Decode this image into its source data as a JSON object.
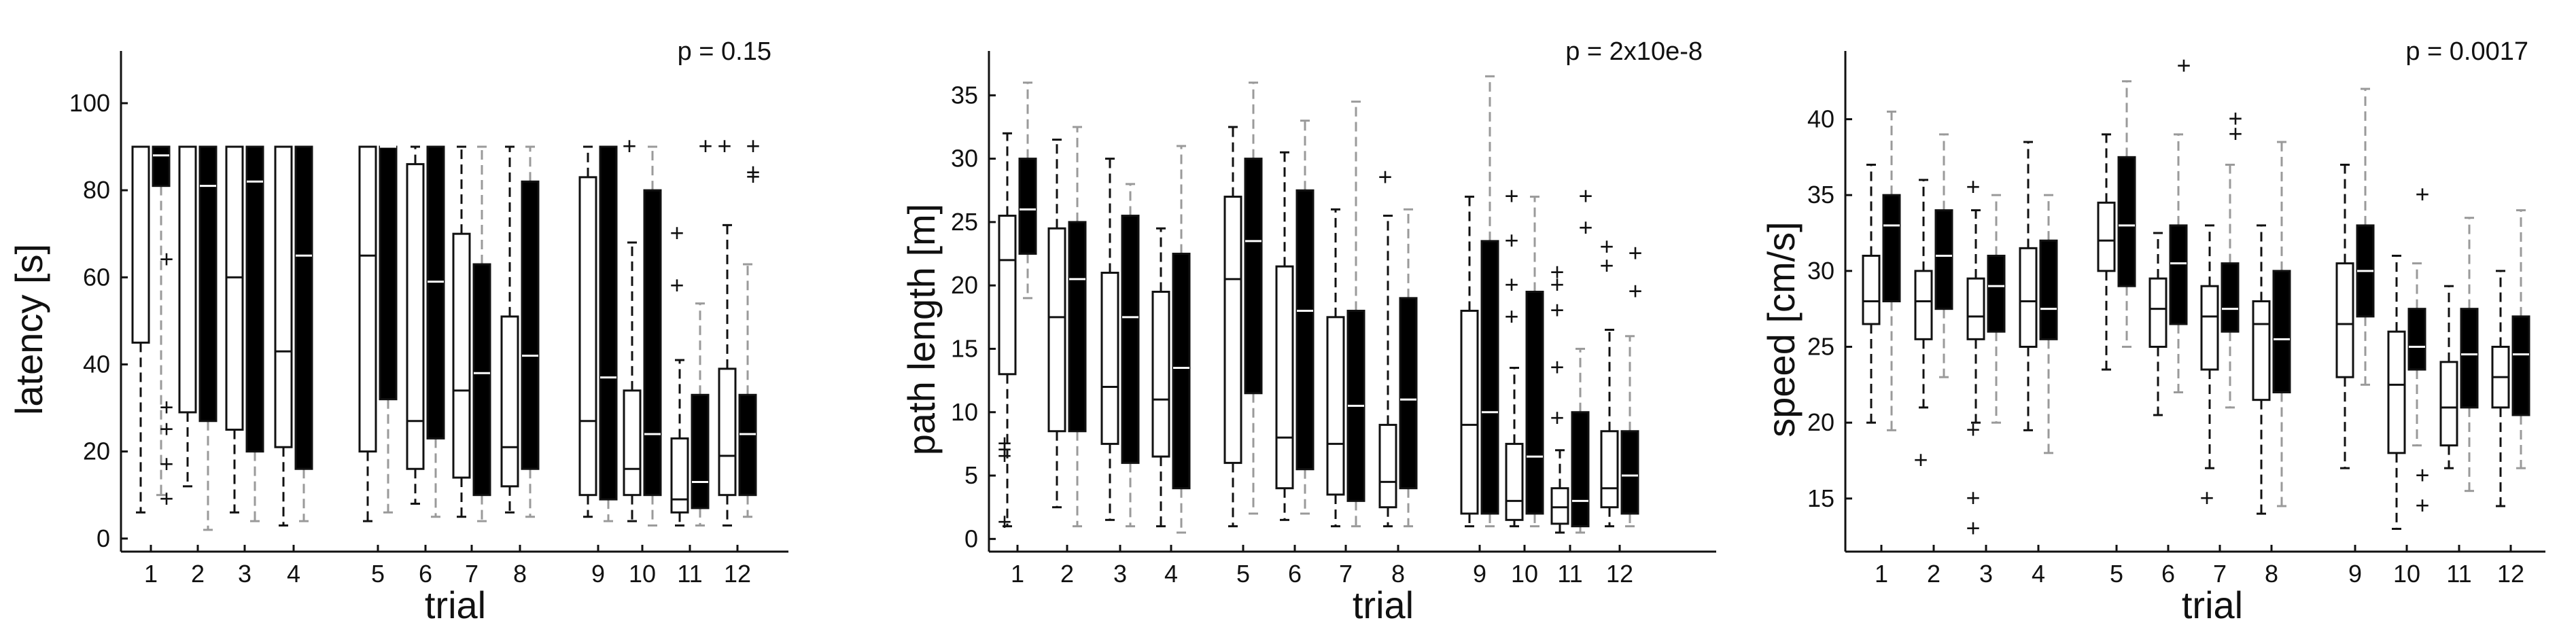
{
  "figure": {
    "colors": {
      "left_box": "#ffffff",
      "right_box": "#000000",
      "right_whisker": "#9a9a9a",
      "axis": "#111111"
    }
  },
  "chart_data": [
    {
      "type": "box",
      "p_text": "p = 0.15",
      "xlabel": "trial",
      "ylabel": "latency [s]",
      "ylim": [
        -3,
        112
      ],
      "yticks": [
        0,
        20,
        40,
        60,
        80,
        100
      ],
      "ytick_labels": [
        "0",
        "20",
        "40",
        "60",
        "80",
        "100"
      ],
      "xtick_labels": [
        "1",
        "2",
        "3",
        "4",
        "5",
        "6",
        "7",
        "8",
        "9",
        "10",
        "11",
        "12"
      ],
      "groups": [
        {
          "trial": "1",
          "left": {
            "lo": 6,
            "q1": 45,
            "med": 90,
            "q3": 90,
            "hi": 90,
            "out": []
          },
          "right": {
            "lo": 10,
            "q1": 81,
            "med": 88,
            "q3": 90,
            "hi": 90,
            "out": [
              64,
              30,
              25,
              17,
              9
            ]
          }
        },
        {
          "trial": "2",
          "left": {
            "lo": 12,
            "q1": 29,
            "med": 90,
            "q3": 90,
            "hi": 90,
            "out": []
          },
          "right": {
            "lo": 2,
            "q1": 27,
            "med": 81,
            "q3": 90,
            "hi": 90,
            "out": []
          }
        },
        {
          "trial": "3",
          "left": {
            "lo": 6,
            "q1": 25,
            "med": 60,
            "q3": 90,
            "hi": 90,
            "out": []
          },
          "right": {
            "lo": 4,
            "q1": 20,
            "med": 82,
            "q3": 90,
            "hi": 90,
            "out": []
          }
        },
        {
          "trial": "4",
          "left": {
            "lo": 3,
            "q1": 21,
            "med": 43,
            "q3": 90,
            "hi": 90,
            "out": []
          },
          "right": {
            "lo": 4,
            "q1": 16,
            "med": 65,
            "q3": 90,
            "hi": 90,
            "out": []
          }
        },
        {
          "trial": "5",
          "left": {
            "lo": 4,
            "q1": 20,
            "med": 65,
            "q3": 90,
            "hi": 90,
            "out": []
          },
          "right": {
            "lo": 6,
            "q1": 32,
            "med": 90,
            "q3": 90,
            "hi": 90,
            "out": []
          }
        },
        {
          "trial": "6",
          "left": {
            "lo": 8,
            "q1": 16,
            "med": 27,
            "q3": 86,
            "hi": 90,
            "out": []
          },
          "right": {
            "lo": 5,
            "q1": 23,
            "med": 59,
            "q3": 90,
            "hi": 90,
            "out": []
          }
        },
        {
          "trial": "7",
          "left": {
            "lo": 5,
            "q1": 14,
            "med": 34,
            "q3": 70,
            "hi": 90,
            "out": []
          },
          "right": {
            "lo": 4,
            "q1": 10,
            "med": 38,
            "q3": 63,
            "hi": 90,
            "out": []
          }
        },
        {
          "trial": "8",
          "left": {
            "lo": 6,
            "q1": 12,
            "med": 21,
            "q3": 51,
            "hi": 90,
            "out": []
          },
          "right": {
            "lo": 5,
            "q1": 16,
            "med": 42,
            "q3": 82,
            "hi": 90,
            "out": []
          }
        },
        {
          "trial": "9",
          "left": {
            "lo": 5,
            "q1": 10,
            "med": 27,
            "q3": 83,
            "hi": 90,
            "out": []
          },
          "right": {
            "lo": 4,
            "q1": 9,
            "med": 37,
            "q3": 90,
            "hi": 90,
            "out": []
          }
        },
        {
          "trial": "10",
          "left": {
            "lo": 4,
            "q1": 10,
            "med": 16,
            "q3": 34,
            "hi": 68,
            "out": [
              90
            ]
          },
          "right": {
            "lo": 3,
            "q1": 10,
            "med": 24,
            "q3": 80,
            "hi": 90,
            "out": []
          }
        },
        {
          "trial": "11",
          "left": {
            "lo": 3,
            "q1": 6,
            "med": 9,
            "q3": 23,
            "hi": 41,
            "out": [
              70,
              58
            ]
          },
          "right": {
            "lo": 3,
            "q1": 7,
            "med": 13,
            "q3": 33,
            "hi": 54,
            "out": [
              90
            ]
          }
        },
        {
          "trial": "12",
          "left": {
            "lo": 3,
            "q1": 10,
            "med": 19,
            "q3": 39,
            "hi": 72,
            "out": [
              90
            ]
          },
          "right": {
            "lo": 5,
            "q1": 10,
            "med": 24,
            "q3": 33,
            "hi": 63,
            "out": [
              90,
              84,
              83
            ]
          }
        }
      ]
    },
    {
      "type": "box",
      "p_text": "p = 2x10e-8",
      "xlabel": "trial",
      "ylabel": "path length [m]",
      "ylim": [
        -1,
        38.5
      ],
      "yticks": [
        0,
        5,
        10,
        15,
        20,
        25,
        30,
        35
      ],
      "ytick_labels": [
        "0",
        "5",
        "10",
        "15",
        "20",
        "25",
        "30",
        "35"
      ],
      "xtick_labels": [
        "1",
        "2",
        "3",
        "4",
        "5",
        "6",
        "7",
        "8",
        "9",
        "10",
        "11",
        "12"
      ],
      "groups": [
        {
          "trial": "1",
          "left": {
            "lo": 1,
            "q1": 13,
            "med": 22,
            "q3": 25.5,
            "hi": 32,
            "out": [
              7.5,
              7,
              6.5,
              1.3
            ]
          },
          "right": {
            "lo": 19,
            "q1": 22.5,
            "med": 26,
            "q3": 30,
            "hi": 36,
            "out": []
          }
        },
        {
          "trial": "2",
          "left": {
            "lo": 2.5,
            "q1": 8.5,
            "med": 17.5,
            "q3": 24.5,
            "hi": 31.5,
            "out": []
          },
          "right": {
            "lo": 1,
            "q1": 8.5,
            "med": 20.5,
            "q3": 25,
            "hi": 32.5,
            "out": []
          }
        },
        {
          "trial": "3",
          "left": {
            "lo": 1.5,
            "q1": 7.5,
            "med": 12,
            "q3": 21,
            "hi": 30,
            "out": []
          },
          "right": {
            "lo": 1,
            "q1": 6,
            "med": 17.5,
            "q3": 25.5,
            "hi": 28,
            "out": []
          }
        },
        {
          "trial": "4",
          "left": {
            "lo": 1,
            "q1": 6.5,
            "med": 11,
            "q3": 19.5,
            "hi": 24.5,
            "out": []
          },
          "right": {
            "lo": 0.5,
            "q1": 4,
            "med": 13.5,
            "q3": 22.5,
            "hi": 31,
            "out": []
          }
        },
        {
          "trial": "5",
          "left": {
            "lo": 1,
            "q1": 6,
            "med": 20.5,
            "q3": 27,
            "hi": 32.5,
            "out": []
          },
          "right": {
            "lo": 2,
            "q1": 11.5,
            "med": 23.5,
            "q3": 30,
            "hi": 36,
            "out": []
          }
        },
        {
          "trial": "6",
          "left": {
            "lo": 1.5,
            "q1": 4,
            "med": 8,
            "q3": 21.5,
            "hi": 30.5,
            "out": []
          },
          "right": {
            "lo": 2,
            "q1": 5.5,
            "med": 18,
            "q3": 27.5,
            "hi": 33,
            "out": []
          }
        },
        {
          "trial": "7",
          "left": {
            "lo": 1,
            "q1": 3.5,
            "med": 7.5,
            "q3": 17.5,
            "hi": 26,
            "out": []
          },
          "right": {
            "lo": 1,
            "q1": 3,
            "med": 10.5,
            "q3": 18,
            "hi": 34.5,
            "out": []
          }
        },
        {
          "trial": "8",
          "left": {
            "lo": 1,
            "q1": 2.5,
            "med": 4.5,
            "q3": 9,
            "hi": 25.5,
            "out": [
              28.5
            ]
          },
          "right": {
            "lo": 1,
            "q1": 4,
            "med": 11,
            "q3": 19,
            "hi": 26,
            "out": []
          }
        },
        {
          "trial": "9",
          "left": {
            "lo": 1,
            "q1": 2,
            "med": 9,
            "q3": 18,
            "hi": 27,
            "out": []
          },
          "right": {
            "lo": 1,
            "q1": 2,
            "med": 10,
            "q3": 23.5,
            "hi": 36.5,
            "out": []
          }
        },
        {
          "trial": "10",
          "left": {
            "lo": 1,
            "q1": 1.5,
            "med": 3,
            "q3": 7.5,
            "hi": 13.5,
            "out": [
              27,
              23.5,
              20,
              17.5
            ]
          },
          "right": {
            "lo": 1,
            "q1": 2,
            "med": 6.5,
            "q3": 19.5,
            "hi": 27,
            "out": []
          }
        },
        {
          "trial": "11",
          "left": {
            "lo": 0.5,
            "q1": 1.2,
            "med": 2.5,
            "q3": 4,
            "hi": 7,
            "out": [
              21,
              20,
              18,
              13.5,
              9.5
            ]
          },
          "right": {
            "lo": 0.5,
            "q1": 1,
            "med": 3,
            "q3": 10,
            "hi": 15,
            "out": [
              27,
              24.5
            ]
          }
        },
        {
          "trial": "12",
          "left": {
            "lo": 1,
            "q1": 2.5,
            "med": 4,
            "q3": 8.5,
            "hi": 16.5,
            "out": [
              23,
              21.5
            ]
          },
          "right": {
            "lo": 1,
            "q1": 2,
            "med": 5,
            "q3": 8.5,
            "hi": 16,
            "out": [
              22.5,
              19.5
            ]
          }
        }
      ]
    },
    {
      "type": "box",
      "p_text": "p = 0.0017",
      "xlabel": "trial",
      "ylabel": "speed [cm/s]",
      "ylim": [
        11.5,
        44.5
      ],
      "yticks": [
        15,
        20,
        25,
        30,
        35,
        40
      ],
      "ytick_labels": [
        "15",
        "20",
        "25",
        "30",
        "35",
        "40"
      ],
      "xtick_labels": [
        "1",
        "2",
        "3",
        "4",
        "5",
        "6",
        "7",
        "8",
        "9",
        "10",
        "11",
        "12"
      ],
      "groups": [
        {
          "trial": "1",
          "left": {
            "lo": 20,
            "q1": 26.5,
            "med": 28,
            "q3": 31,
            "hi": 37,
            "out": []
          },
          "right": {
            "lo": 19.5,
            "q1": 28,
            "med": 33,
            "q3": 35,
            "hi": 40.5,
            "out": []
          }
        },
        {
          "trial": "2",
          "left": {
            "lo": 21,
            "q1": 25.5,
            "med": 28,
            "q3": 30,
            "hi": 36,
            "out": [
              17.5
            ]
          },
          "right": {
            "lo": 23,
            "q1": 27.5,
            "med": 31,
            "q3": 34,
            "hi": 39,
            "out": []
          }
        },
        {
          "trial": "3",
          "left": {
            "lo": 20,
            "q1": 25.5,
            "med": 27,
            "q3": 29.5,
            "hi": 34,
            "out": [
              35.5,
              19.5,
              15,
              13
            ]
          },
          "right": {
            "lo": 20,
            "q1": 26,
            "med": 29,
            "q3": 31,
            "hi": 35,
            "out": []
          }
        },
        {
          "trial": "4",
          "left": {
            "lo": 19.5,
            "q1": 25,
            "med": 28,
            "q3": 31.5,
            "hi": 38.5,
            "out": []
          },
          "right": {
            "lo": 18,
            "q1": 25.5,
            "med": 27.5,
            "q3": 32,
            "hi": 35,
            "out": []
          }
        },
        {
          "trial": "5",
          "left": {
            "lo": 23.5,
            "q1": 30,
            "med": 32,
            "q3": 34.5,
            "hi": 39,
            "out": []
          },
          "right": {
            "lo": 25,
            "q1": 29,
            "med": 33,
            "q3": 37.5,
            "hi": 42.5,
            "out": []
          }
        },
        {
          "trial": "6",
          "left": {
            "lo": 20.5,
            "q1": 25,
            "med": 27.5,
            "q3": 29.5,
            "hi": 32.5,
            "out": []
          },
          "right": {
            "lo": 22,
            "q1": 26.5,
            "med": 30.5,
            "q3": 33,
            "hi": 39,
            "out": [
              43.5
            ]
          }
        },
        {
          "trial": "7",
          "left": {
            "lo": 17,
            "q1": 23.5,
            "med": 27,
            "q3": 29,
            "hi": 33,
            "out": [
              15
            ]
          },
          "right": {
            "lo": 21,
            "q1": 26,
            "med": 27.5,
            "q3": 30.5,
            "hi": 37,
            "out": [
              40,
              39
            ]
          }
        },
        {
          "trial": "8",
          "left": {
            "lo": 14,
            "q1": 21.5,
            "med": 26.5,
            "q3": 28,
            "hi": 33,
            "out": []
          },
          "right": {
            "lo": 14.5,
            "q1": 22,
            "med": 25.5,
            "q3": 30,
            "hi": 38.5,
            "out": []
          }
        },
        {
          "trial": "9",
          "left": {
            "lo": 17,
            "q1": 23,
            "med": 26.5,
            "q3": 30.5,
            "hi": 37,
            "out": []
          },
          "right": {
            "lo": 22.5,
            "q1": 27,
            "med": 30,
            "q3": 33,
            "hi": 42,
            "out": []
          }
        },
        {
          "trial": "10",
          "left": {
            "lo": 13,
            "q1": 18,
            "med": 22.5,
            "q3": 26,
            "hi": 31,
            "out": []
          },
          "right": {
            "lo": 18.5,
            "q1": 23.5,
            "med": 25,
            "q3": 27.5,
            "hi": 30.5,
            "out": [
              35,
              16.5,
              14.5
            ]
          }
        },
        {
          "trial": "11",
          "left": {
            "lo": 17,
            "q1": 18.5,
            "med": 21,
            "q3": 24,
            "hi": 29,
            "out": []
          },
          "right": {
            "lo": 15.5,
            "q1": 21,
            "med": 24.5,
            "q3": 27.5,
            "hi": 33.5,
            "out": []
          }
        },
        {
          "trial": "12",
          "left": {
            "lo": 14.5,
            "q1": 21,
            "med": 23,
            "q3": 25,
            "hi": 30,
            "out": []
          },
          "right": {
            "lo": 17,
            "q1": 20.5,
            "med": 24.5,
            "q3": 27,
            "hi": 34,
            "out": []
          }
        }
      ]
    }
  ]
}
